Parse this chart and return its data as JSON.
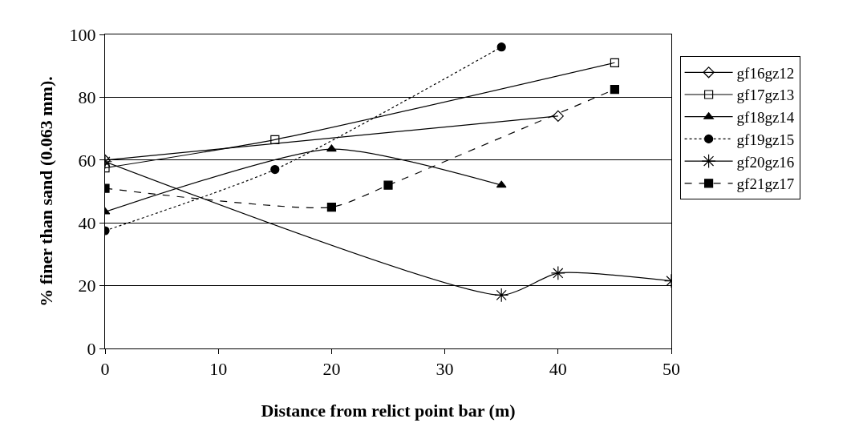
{
  "chart_data": {
    "type": "line",
    "xlabel": "Distance from relict point bar (m)",
    "ylabel": "% finer than sand (0.063 mm).",
    "xlim": [
      0,
      50
    ],
    "xticks": [
      0,
      10,
      20,
      30,
      40,
      50
    ],
    "ylim": [
      0,
      100
    ],
    "yticks": [
      0,
      20,
      40,
      60,
      80,
      100
    ],
    "grid": "y",
    "legend": "right",
    "series": [
      {
        "name": "gf16gz12",
        "color": "#000000",
        "marker": "diamond-open",
        "line_style": "solid",
        "x": [
          0,
          40
        ],
        "values": [
          60,
          74
        ]
      },
      {
        "name": "gf17gz13",
        "color": "#000000",
        "marker": "square-open",
        "line_style": "solid",
        "x": [
          0,
          15,
          45
        ],
        "values": [
          57.5,
          66.5,
          91
        ]
      },
      {
        "name": "gf18gz14",
        "color": "#000000",
        "marker": "triangle",
        "line_style": "solid",
        "x": [
          0,
          20,
          35
        ],
        "values": [
          43.5,
          63.5,
          52
        ]
      },
      {
        "name": "gf19gz15",
        "color": "#000000",
        "marker": "circle",
        "line_style": "dotted",
        "x": [
          0,
          15,
          35
        ],
        "values": [
          37.5,
          57,
          96
        ]
      },
      {
        "name": "gf20gz16",
        "color": "#000000",
        "marker": "cross",
        "line_style": "solid",
        "x": [
          0,
          35,
          40,
          50
        ],
        "values": [
          59.5,
          17,
          24,
          21.5
        ]
      },
      {
        "name": "gf21gz17",
        "color": "#000000",
        "marker": "square",
        "line_style": "dashed",
        "x": [
          0,
          20,
          25,
          45
        ],
        "values": [
          51,
          45,
          52,
          82.5
        ]
      }
    ]
  }
}
